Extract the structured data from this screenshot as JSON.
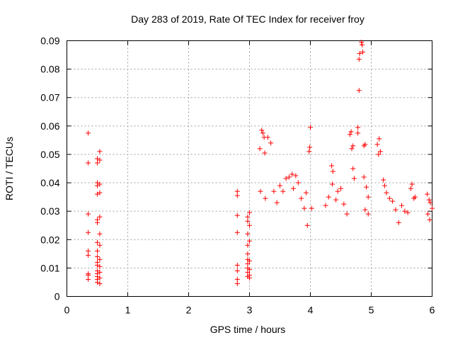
{
  "chart_data": {
    "type": "scatter",
    "title": "Day 283 of 2019, Rate Of TEC Index for receiver froy",
    "xlabel": "GPS time / hours",
    "ylabel": "ROTI / TECUs",
    "xlim": [
      0,
      6
    ],
    "ylim": [
      0,
      0.09
    ],
    "x_ticks": [
      0,
      1,
      2,
      3,
      4,
      5,
      6
    ],
    "x_tick_labels": [
      "0",
      "1",
      "2",
      "3",
      "4",
      "5",
      "6"
    ],
    "y_ticks": [
      0,
      0.01,
      0.02,
      0.03,
      0.04,
      0.05,
      0.06,
      0.07,
      0.08,
      0.09
    ],
    "y_tick_labels": [
      "0",
      "0.01",
      "0.02",
      "0.03",
      "0.04",
      "0.05",
      "0.06",
      "0.07",
      "0.08",
      "0.09"
    ],
    "grid": true,
    "marker": "+",
    "series": [
      {
        "name": "ROTI",
        "color": "#ff0000",
        "points": [
          [
            0.35,
            0.0575
          ],
          [
            0.35,
            0.047
          ],
          [
            0.35,
            0.029
          ],
          [
            0.35,
            0.0225
          ],
          [
            0.35,
            0.016
          ],
          [
            0.35,
            0.0145
          ],
          [
            0.35,
            0.008
          ],
          [
            0.35,
            0.0075
          ],
          [
            0.35,
            0.006
          ],
          [
            0.5,
            0.0485
          ],
          [
            0.5,
            0.047
          ],
          [
            0.5,
            0.04
          ],
          [
            0.5,
            0.039
          ],
          [
            0.5,
            0.036
          ],
          [
            0.5,
            0.027
          ],
          [
            0.5,
            0.026
          ],
          [
            0.5,
            0.019
          ],
          [
            0.5,
            0.016
          ],
          [
            0.5,
            0.014
          ],
          [
            0.5,
            0.012
          ],
          [
            0.5,
            0.011
          ],
          [
            0.5,
            0.009
          ],
          [
            0.5,
            0.008
          ],
          [
            0.5,
            0.007
          ],
          [
            0.5,
            0.006
          ],
          [
            0.5,
            0.005
          ],
          [
            0.54,
            0.051
          ],
          [
            0.54,
            0.048
          ],
          [
            0.54,
            0.0395
          ],
          [
            0.54,
            0.0365
          ],
          [
            0.54,
            0.028
          ],
          [
            0.54,
            0.022
          ],
          [
            0.54,
            0.018
          ],
          [
            0.54,
            0.013
          ],
          [
            0.54,
            0.0105
          ],
          [
            0.54,
            0.0085
          ],
          [
            0.54,
            0.0065
          ],
          [
            0.54,
            0.0045
          ],
          [
            2.8,
            0.037
          ],
          [
            2.8,
            0.0355
          ],
          [
            2.8,
            0.0285
          ],
          [
            2.8,
            0.0225
          ],
          [
            2.8,
            0.011
          ],
          [
            2.8,
            0.009
          ],
          [
            2.8,
            0.006
          ],
          [
            2.8,
            0.0045
          ],
          [
            2.97,
            0.028
          ],
          [
            2.97,
            0.0265
          ],
          [
            2.97,
            0.022
          ],
          [
            2.97,
            0.018
          ],
          [
            2.97,
            0.015
          ],
          [
            2.97,
            0.013
          ],
          [
            2.97,
            0.0115
          ],
          [
            2.97,
            0.01
          ],
          [
            2.97,
            0.0085
          ],
          [
            2.97,
            0.007
          ],
          [
            3.0,
            0.0295
          ],
          [
            3.0,
            0.025
          ],
          [
            3.0,
            0.0195
          ],
          [
            3.0,
            0.0125
          ],
          [
            3.0,
            0.0095
          ],
          [
            3.0,
            0.0075
          ],
          [
            3.0,
            0.0065
          ],
          [
            3.17,
            0.052
          ],
          [
            3.18,
            0.037
          ],
          [
            3.2,
            0.0585
          ],
          [
            3.22,
            0.0575
          ],
          [
            3.24,
            0.056
          ],
          [
            3.25,
            0.0505
          ],
          [
            3.26,
            0.0345
          ],
          [
            3.3,
            0.056
          ],
          [
            3.35,
            0.054
          ],
          [
            3.4,
            0.037
          ],
          [
            3.45,
            0.033
          ],
          [
            3.5,
            0.039
          ],
          [
            3.55,
            0.037
          ],
          [
            3.6,
            0.0415
          ],
          [
            3.65,
            0.042
          ],
          [
            3.7,
            0.043
          ],
          [
            3.72,
            0.038
          ],
          [
            3.76,
            0.0425
          ],
          [
            3.8,
            0.04
          ],
          [
            3.85,
            0.0345
          ],
          [
            3.9,
            0.031
          ],
          [
            3.95,
            0.025
          ],
          [
            3.93,
            0.0365
          ],
          [
            3.98,
            0.051
          ],
          [
            4.0,
            0.0595
          ],
          [
            3.99,
            0.0525
          ],
          [
            4.02,
            0.031
          ],
          [
            4.35,
            0.046
          ],
          [
            4.37,
            0.044
          ],
          [
            4.36,
            0.0395
          ],
          [
            4.45,
            0.037
          ],
          [
            4.42,
            0.034
          ],
          [
            4.3,
            0.035
          ],
          [
            4.25,
            0.032
          ],
          [
            4.5,
            0.038
          ],
          [
            4.55,
            0.0325
          ],
          [
            4.6,
            0.029
          ],
          [
            4.65,
            0.057
          ],
          [
            4.67,
            0.058
          ],
          [
            4.7,
            0.053
          ],
          [
            4.7,
            0.045
          ],
          [
            4.72,
            0.0415
          ],
          [
            4.68,
            0.052
          ],
          [
            4.78,
            0.0595
          ],
          [
            4.78,
            0.0575
          ],
          [
            4.8,
            0.0835
          ],
          [
            4.81,
            0.0855
          ],
          [
            4.84,
            0.0895
          ],
          [
            4.85,
            0.0885
          ],
          [
            4.8,
            0.0725
          ],
          [
            4.86,
            0.086
          ],
          [
            4.88,
            0.053
          ],
          [
            4.9,
            0.0535
          ],
          [
            4.88,
            0.042
          ],
          [
            4.92,
            0.0385
          ],
          [
            4.95,
            0.035
          ],
          [
            4.9,
            0.0305
          ],
          [
            4.95,
            0.029
          ],
          [
            5.1,
            0.0535
          ],
          [
            5.13,
            0.0555
          ],
          [
            5.12,
            0.05
          ],
          [
            5.15,
            0.051
          ],
          [
            5.2,
            0.041
          ],
          [
            5.22,
            0.039
          ],
          [
            5.25,
            0.0365
          ],
          [
            5.3,
            0.0345
          ],
          [
            5.35,
            0.0335
          ],
          [
            5.4,
            0.0305
          ],
          [
            5.45,
            0.026
          ],
          [
            5.5,
            0.032
          ],
          [
            5.55,
            0.03
          ],
          [
            5.6,
            0.0295
          ],
          [
            5.65,
            0.038
          ],
          [
            5.67,
            0.0395
          ],
          [
            5.7,
            0.0345
          ],
          [
            5.72,
            0.035
          ],
          [
            5.92,
            0.036
          ],
          [
            5.95,
            0.034
          ],
          [
            5.97,
            0.033
          ],
          [
            6.0,
            0.031
          ],
          [
            5.93,
            0.029
          ],
          [
            5.96,
            0.027
          ]
        ]
      }
    ]
  }
}
